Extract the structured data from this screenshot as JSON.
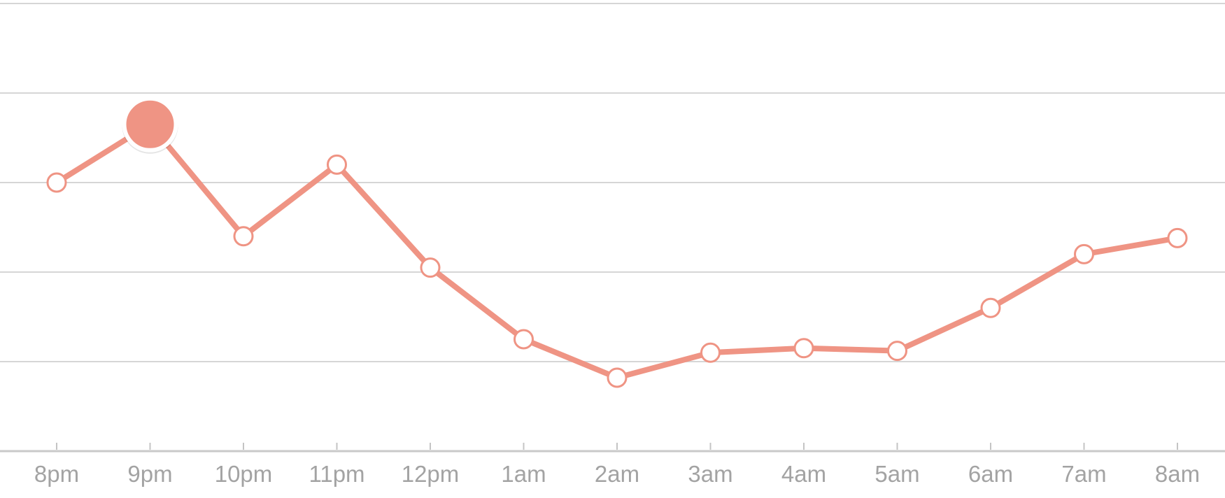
{
  "colors": {
    "series": "#ef9484",
    "point_fill": "#ffffff",
    "grid": "#d6d6d6",
    "tick_label": "#a3a3a3"
  },
  "chart_data": {
    "type": "line",
    "title": "",
    "xlabel": "",
    "ylabel": "",
    "categories": [
      "8pm",
      "9pm",
      "10pm",
      "11pm",
      "12pm",
      "1am",
      "2am",
      "3am",
      "4am",
      "5am",
      "6am",
      "7am",
      "8am"
    ],
    "series": [
      {
        "values": [
          3.0,
          3.65,
          2.4,
          3.2,
          2.05,
          1.25,
          0.82,
          1.1,
          1.15,
          1.12,
          1.6,
          2.2,
          2.38
        ]
      }
    ],
    "ylim": [
      0,
      5
    ],
    "y_gridlines": [
      1,
      2,
      3,
      4,
      5
    ],
    "y_tick_labels_shown": false,
    "highlighted_category": "9pm",
    "grid": true,
    "legend": false
  }
}
